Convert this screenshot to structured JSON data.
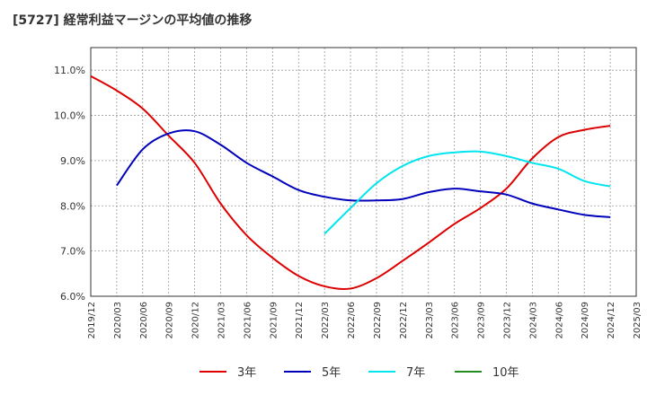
{
  "chart_data": {
    "type": "line",
    "title": "[5727]  経常利益マージンの平均値の推移",
    "xlabel": "",
    "ylabel": "",
    "ylim": [
      6.0,
      11.5
    ],
    "y_ticks": [
      "6.0%",
      "7.0%",
      "8.0%",
      "9.0%",
      "10.0%",
      "11.0%"
    ],
    "y_tick_values": [
      6.0,
      7.0,
      8.0,
      9.0,
      10.0,
      11.0
    ],
    "x_ticks": [
      "2019/12",
      "2020/03",
      "2020/06",
      "2020/09",
      "2020/12",
      "2021/03",
      "2021/06",
      "2021/09",
      "2021/12",
      "2022/03",
      "2022/06",
      "2022/09",
      "2022/12",
      "2023/03",
      "2023/06",
      "2023/09",
      "2023/12",
      "2024/03",
      "2024/06",
      "2024/09",
      "2024/12",
      "2025/03"
    ],
    "grid": true,
    "legend_position": "bottom",
    "series": [
      {
        "name": "3年",
        "color": "#dd0000",
        "points": [
          [
            "2019/12",
            10.87
          ],
          [
            "2020/03",
            10.55
          ],
          [
            "2020/06",
            10.15
          ],
          [
            "2020/09",
            9.55
          ],
          [
            "2020/12",
            8.95
          ],
          [
            "2021/03",
            8.05
          ],
          [
            "2021/06",
            7.35
          ],
          [
            "2021/09",
            6.85
          ],
          [
            "2021/12",
            6.45
          ],
          [
            "2022/03",
            6.22
          ],
          [
            "2022/06",
            6.17
          ],
          [
            "2022/09",
            6.4
          ],
          [
            "2022/12",
            6.78
          ],
          [
            "2023/03",
            7.18
          ],
          [
            "2023/06",
            7.6
          ],
          [
            "2023/09",
            7.95
          ],
          [
            "2023/12",
            8.38
          ],
          [
            "2024/03",
            9.05
          ],
          [
            "2024/06",
            9.52
          ],
          [
            "2024/09",
            9.68
          ],
          [
            "2024/12",
            9.77
          ]
        ]
      },
      {
        "name": "5年",
        "color": "#0000bb",
        "points": [
          [
            "2020/03",
            8.45
          ],
          [
            "2020/06",
            9.25
          ],
          [
            "2020/09",
            9.6
          ],
          [
            "2020/12",
            9.65
          ],
          [
            "2021/03",
            9.35
          ],
          [
            "2021/06",
            8.95
          ],
          [
            "2021/09",
            8.65
          ],
          [
            "2021/12",
            8.35
          ],
          [
            "2022/03",
            8.2
          ],
          [
            "2022/06",
            8.12
          ],
          [
            "2022/09",
            8.12
          ],
          [
            "2022/12",
            8.15
          ],
          [
            "2023/03",
            8.3
          ],
          [
            "2023/06",
            8.38
          ],
          [
            "2023/09",
            8.32
          ],
          [
            "2023/12",
            8.25
          ],
          [
            "2024/03",
            8.05
          ],
          [
            "2024/06",
            7.92
          ],
          [
            "2024/09",
            7.8
          ],
          [
            "2024/12",
            7.75
          ]
        ]
      },
      {
        "name": "7年",
        "color": "#00e5ee",
        "points": [
          [
            "2022/03",
            7.38
          ],
          [
            "2022/06",
            7.95
          ],
          [
            "2022/09",
            8.5
          ],
          [
            "2022/12",
            8.88
          ],
          [
            "2023/03",
            9.1
          ],
          [
            "2023/06",
            9.18
          ],
          [
            "2023/09",
            9.2
          ],
          [
            "2023/12",
            9.1
          ],
          [
            "2024/03",
            8.95
          ],
          [
            "2024/06",
            8.82
          ],
          [
            "2024/09",
            8.55
          ],
          [
            "2024/12",
            8.43
          ]
        ]
      },
      {
        "name": "10年",
        "color": "#228b22",
        "points": []
      }
    ]
  }
}
